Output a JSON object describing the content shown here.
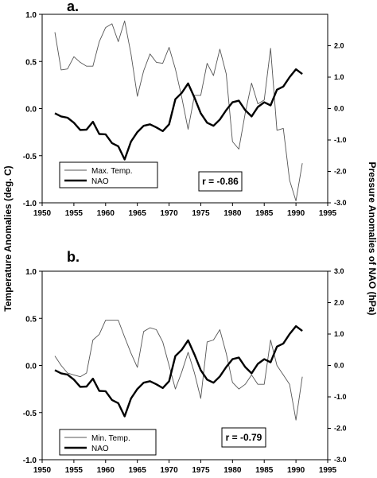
{
  "left_axis_label": "Temperature Anomalies (deg. C)",
  "right_axis_label": "Pressure Anomalies of NAO (hPa)",
  "chart_data": [
    {
      "type": "line",
      "panel": "a.",
      "x_ticks": [
        "1950",
        "1955",
        "1960",
        "1965",
        "1970",
        "1975",
        "1980",
        "1985",
        "1990",
        "1995"
      ],
      "left_ticks": [
        "-1.0",
        "-0.5",
        "0.0",
        "0.5",
        "1.0"
      ],
      "right_ticks": [
        "-3.0",
        "-2.0",
        "-1.0",
        "0.0",
        "1.0",
        "2.0"
      ],
      "xlim": [
        1950,
        1995
      ],
      "ylim_left": [
        -1.0,
        1.0
      ],
      "ylim_right": [
        -3.0,
        3.0
      ],
      "legend_position": "bottom-left",
      "annotation": "r = -0.86",
      "series": [
        {
          "name": "Max. Temp.",
          "axis": "left",
          "x": [
            1952,
            1953,
            1954,
            1955,
            1956,
            1957,
            1958,
            1959,
            1960,
            1961,
            1962,
            1963,
            1964,
            1965,
            1966,
            1967,
            1968,
            1969,
            1970,
            1971,
            1972,
            1973,
            1974,
            1975,
            1976,
            1977,
            1978,
            1979,
            1980,
            1981,
            1982,
            1983,
            1984,
            1985,
            1986,
            1987,
            1988,
            1989,
            1990,
            1991
          ],
          "values": [
            0.81,
            0.41,
            0.42,
            0.55,
            0.49,
            0.45,
            0.45,
            0.71,
            0.86,
            0.9,
            0.71,
            0.93,
            0.58,
            0.13,
            0.4,
            0.58,
            0.49,
            0.48,
            0.65,
            0.42,
            0.12,
            -0.22,
            0.14,
            0.14,
            0.48,
            0.35,
            0.63,
            0.37,
            -0.35,
            -0.43,
            -0.05,
            0.27,
            0.05,
            0.09,
            0.64,
            -0.23,
            -0.21,
            -0.76,
            -0.98,
            -0.58
          ]
        },
        {
          "name": "NAO",
          "axis": "right",
          "x": [
            1952,
            1953,
            1954,
            1955,
            1956,
            1957,
            1958,
            1959,
            1960,
            1961,
            1962,
            1963,
            1964,
            1965,
            1966,
            1967,
            1968,
            1969,
            1970,
            1971,
            1972,
            1973,
            1974,
            1975,
            1976,
            1977,
            1978,
            1979,
            1980,
            1981,
            1982,
            1983,
            1984,
            1985,
            1986,
            1987,
            1988,
            1989,
            1990,
            1991
          ],
          "values": [
            -0.15,
            -0.25,
            -0.29,
            -0.45,
            -0.68,
            -0.67,
            -0.42,
            -0.81,
            -0.82,
            -1.1,
            -1.2,
            -1.62,
            -1.05,
            -0.75,
            -0.55,
            -0.5,
            -0.6,
            -0.72,
            -0.5,
            0.3,
            0.5,
            0.8,
            0.35,
            -0.15,
            -0.45,
            -0.55,
            -0.35,
            -0.05,
            0.2,
            0.25,
            -0.05,
            -0.25,
            0.05,
            0.2,
            0.1,
            0.6,
            0.7,
            1.0,
            1.25,
            1.1
          ]
        }
      ]
    },
    {
      "type": "line",
      "panel": "b.",
      "x_ticks": [
        "1950",
        "1955",
        "1960",
        "1965",
        "1970",
        "1975",
        "1980",
        "1985",
        "1990",
        "1995"
      ],
      "left_ticks": [
        "-1.0",
        "-0.5",
        "0.0",
        "0.5",
        "1.0"
      ],
      "right_ticks": [
        "-3.0",
        "-2.0",
        "-1.0",
        "0.0",
        "1.0",
        "2.0",
        "3.0"
      ],
      "xlim": [
        1950,
        1995
      ],
      "ylim_left": [
        -1.0,
        1.0
      ],
      "ylim_right": [
        -3.0,
        3.0
      ],
      "legend_position": "bottom-left",
      "annotation": "r = -0.79",
      "series": [
        {
          "name": "Min. Temp.",
          "axis": "left",
          "x": [
            1952,
            1953,
            1954,
            1955,
            1956,
            1957,
            1958,
            1959,
            1960,
            1961,
            1962,
            1963,
            1964,
            1965,
            1966,
            1967,
            1968,
            1969,
            1970,
            1971,
            1972,
            1973,
            1974,
            1975,
            1976,
            1977,
            1978,
            1979,
            1980,
            1981,
            1982,
            1983,
            1984,
            1985,
            1986,
            1987,
            1988,
            1989,
            1990,
            1991
          ],
          "values": [
            0.1,
            0.0,
            -0.08,
            -0.1,
            -0.12,
            -0.08,
            0.27,
            0.33,
            0.48,
            0.48,
            0.48,
            0.3,
            0.13,
            -0.02,
            0.36,
            0.4,
            0.38,
            0.25,
            0.0,
            -0.25,
            -0.07,
            0.14,
            -0.08,
            -0.35,
            0.25,
            0.27,
            0.38,
            0.13,
            -0.18,
            -0.25,
            -0.2,
            -0.1,
            -0.2,
            -0.2,
            0.27,
            0.0,
            -0.1,
            -0.2,
            -0.58,
            -0.12
          ]
        },
        {
          "name": "NAO",
          "axis": "right",
          "x": [
            1952,
            1953,
            1954,
            1955,
            1956,
            1957,
            1958,
            1959,
            1960,
            1961,
            1962,
            1963,
            1964,
            1965,
            1966,
            1967,
            1968,
            1969,
            1970,
            1971,
            1972,
            1973,
            1974,
            1975,
            1976,
            1977,
            1978,
            1979,
            1980,
            1981,
            1982,
            1983,
            1984,
            1985,
            1986,
            1987,
            1988,
            1989,
            1990,
            1991
          ],
          "values": [
            -0.15,
            -0.25,
            -0.29,
            -0.45,
            -0.68,
            -0.67,
            -0.42,
            -0.81,
            -0.82,
            -1.1,
            -1.2,
            -1.62,
            -1.05,
            -0.75,
            -0.55,
            -0.5,
            -0.6,
            -0.72,
            -0.5,
            0.3,
            0.5,
            0.8,
            0.35,
            -0.15,
            -0.45,
            -0.55,
            -0.35,
            -0.05,
            0.2,
            0.25,
            -0.05,
            -0.25,
            0.05,
            0.2,
            0.1,
            0.6,
            0.7,
            1.0,
            1.25,
            1.1
          ]
        }
      ]
    }
  ]
}
